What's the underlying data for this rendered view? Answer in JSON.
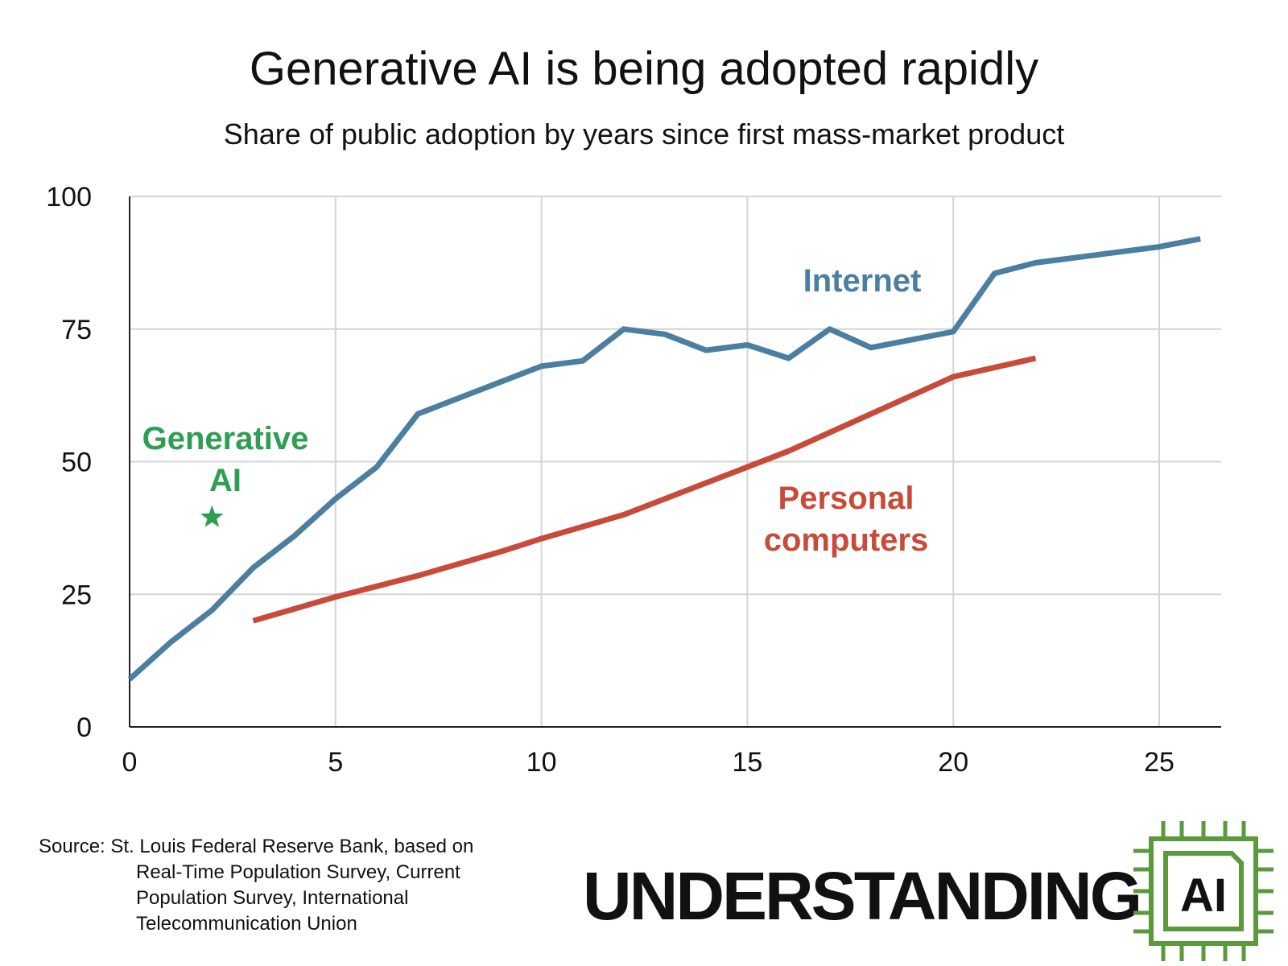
{
  "chart_data": {
    "type": "line",
    "title": "Generative AI is being adopted rapidly",
    "subtitle": "Share of public adoption by years since first mass-market product",
    "xlabel": "",
    "ylabel": "",
    "xlim": [
      0,
      26.5
    ],
    "ylim": [
      0,
      100
    ],
    "x_ticks": [
      0,
      5,
      10,
      15,
      20,
      25
    ],
    "y_ticks": [
      0,
      25,
      50,
      75,
      100
    ],
    "grid": true,
    "series": [
      {
        "name": "Internet",
        "color": "#4a7fa1",
        "x": [
          0,
          1,
          2,
          3,
          4,
          5,
          6,
          7,
          8,
          9,
          10,
          11,
          12,
          13,
          14,
          15,
          16,
          17,
          18,
          19,
          20,
          21,
          22,
          23,
          24,
          25,
          26
        ],
        "y": [
          9,
          16,
          22,
          30,
          36,
          43,
          49,
          59,
          62,
          65,
          68,
          69,
          75,
          74,
          71,
          72,
          69.5,
          75,
          71.5,
          73,
          74.5,
          85.5,
          87.5,
          88.5,
          89.5,
          90.5,
          92
        ]
      },
      {
        "name": "Personal computers",
        "color": "#c84a38",
        "x": [
          3,
          5,
          7,
          9,
          10,
          12,
          14,
          16,
          18,
          20,
          22
        ],
        "y": [
          20,
          24.5,
          28.5,
          33,
          35.5,
          40,
          46,
          52,
          59,
          66,
          69.5
        ]
      },
      {
        "name": "Generative AI",
        "color": "#2e9e52",
        "marker": "star",
        "x": [
          2
        ],
        "y": [
          39.5
        ]
      }
    ],
    "annotations": {
      "internet": "Internet",
      "pc_line1": "Personal",
      "pc_line2": "computers",
      "genai_line1": "Generative",
      "genai_line2": "AI"
    }
  },
  "source": {
    "line1": "Source: St. Louis Federal Reserve Bank, based on",
    "line2": "Real-Time Population Survey, Current",
    "line3": "Population Survey, International",
    "line4": "Telecommunication Union"
  },
  "branding": {
    "wordmark": "UNDERSTANDING",
    "logo_text": "AI",
    "logo_color": "#5a9a3a"
  }
}
